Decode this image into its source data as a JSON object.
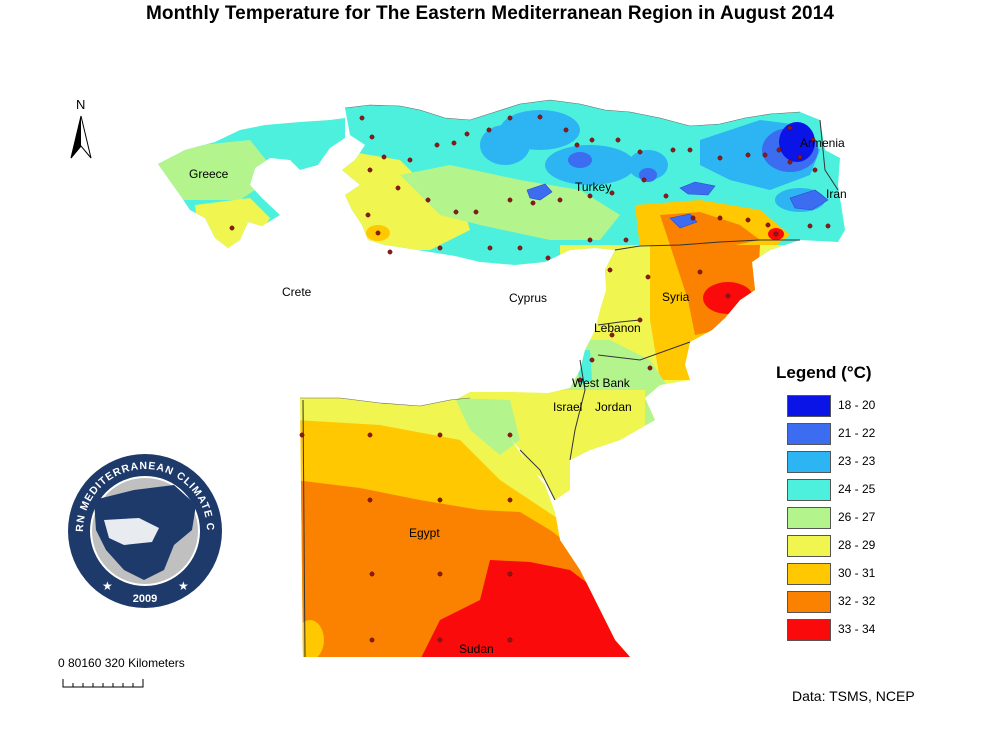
{
  "title": "Monthly Temperature for The Eastern Mediterranean Region in August 2014",
  "north_label": "N",
  "legend": {
    "title": "Legend (°C)",
    "items": [
      {
        "label": "18 - 20",
        "color": "#0a14e6"
      },
      {
        "label": "21 - 22",
        "color": "#3c6cf0"
      },
      {
        "label": "23 - 23",
        "color": "#2db4f2"
      },
      {
        "label": "24 - 25",
        "color": "#4cf0dc"
      },
      {
        "label": "26 - 27",
        "color": "#b4f48c"
      },
      {
        "label": "28 - 29",
        "color": "#f0f550"
      },
      {
        "label": "30 - 31",
        "color": "#ffc800"
      },
      {
        "label": "32 - 32",
        "color": "#fa8200"
      },
      {
        "label": "33 - 34",
        "color": "#fa0a0a"
      }
    ]
  },
  "countries": {
    "greece": "Greece",
    "turkey": "Turkey",
    "syria": "Syria",
    "lebanon": "Lebanon",
    "west_bank": "West Bank",
    "israel": "Israel",
    "jordan": "Jordan",
    "egypt": "Egypt",
    "sudan": "Sudan",
    "cyprus": "Cyprus",
    "crete": "Crete",
    "armenia": "Armenia",
    "iran": "Iran"
  },
  "scale": {
    "text": "0  80160    320 Kilometers"
  },
  "logo": {
    "text": "EASTERN MEDITERRANEAN CLIMATE CENTRE",
    "year": "2009"
  },
  "source": "Data: TSMS, NCEP",
  "colors": {
    "water": "#ffffff",
    "border": "#333333",
    "station": "#8b1a1a"
  }
}
